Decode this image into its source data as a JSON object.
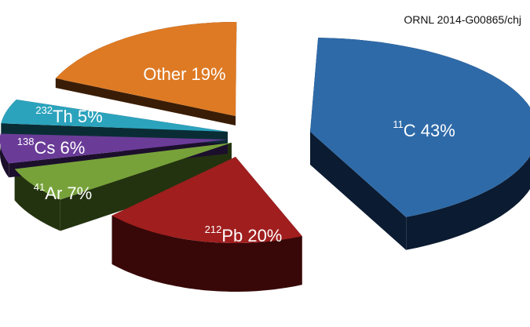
{
  "reference": "ORNL 2014-G00865/chj",
  "chart_data": {
    "type": "pie",
    "style": "3D exploded",
    "slices": [
      {
        "key": "c11",
        "sup": "11",
        "name": "C",
        "value": 43,
        "pct_text": "43%",
        "color": "#2e6aa8",
        "side": "#0b1b31"
      },
      {
        "key": "pb212",
        "sup": "212",
        "name": "Pb",
        "value": 20,
        "pct_text": "20%",
        "color": "#a01e1e",
        "side": "#380808"
      },
      {
        "key": "ar41",
        "sup": "41",
        "name": "Ar",
        "value": 7,
        "pct_text": "7%",
        "color": "#77a23a",
        "side": "#233310"
      },
      {
        "key": "cs138",
        "sup": "138",
        "name": "Cs",
        "value": 6,
        "pct_text": "6%",
        "color": "#6a3c98",
        "side": "#1c0f2c"
      },
      {
        "key": "th232",
        "sup": "232",
        "name": "Th",
        "value": 5,
        "pct_text": "5%",
        "color": "#2ca3bd",
        "side": "#0a2d35"
      },
      {
        "key": "other",
        "sup": "",
        "name": "Other",
        "value": 19,
        "pct_text": "19%",
        "color": "#de7a24",
        "side": "#3a1d06"
      }
    ]
  }
}
